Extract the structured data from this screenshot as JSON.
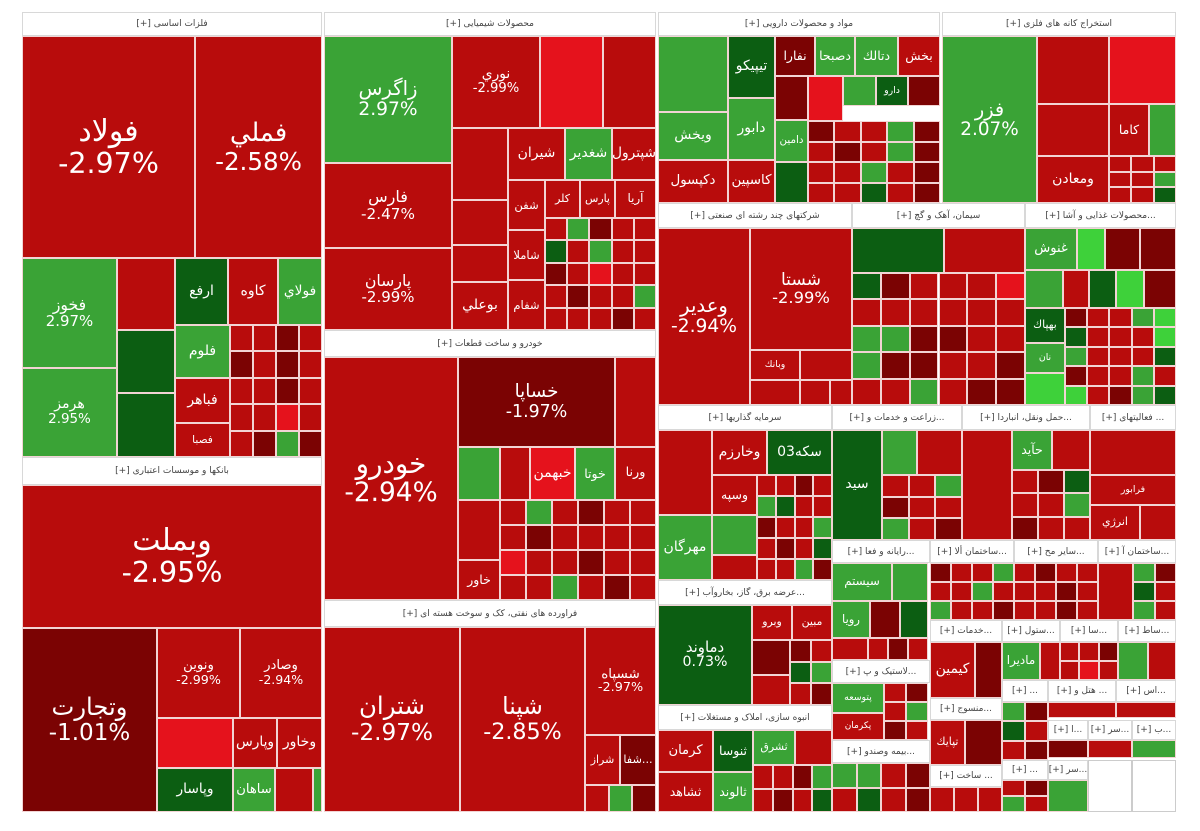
{
  "palette": {
    "R": "#b80c0c",
    "B": "#e5121c",
    "D": "#7b0303",
    "G": "#3aa336",
    "K": "#0c5e12",
    "L": "#3ed13a"
  },
  "sectors": [
    {
      "title": "فلزات اساسی [+]"
    },
    {
      "title": "محصولات شیمیایی [+]"
    },
    {
      "title": "مواد و محصولات دارویی [+]"
    },
    {
      "title": "استخراج کانه های فلزی [+]"
    },
    {
      "title": "بانکها و موسسات اعتباری [+]"
    },
    {
      "title": "خودرو و ساخت قطعات [+]"
    },
    {
      "title": "فراورده های نفتی، کک و سوخت هسته ای [+]"
    },
    {
      "title": "شرکتهای چند رشته ای صنعتی [+]"
    },
    {
      "title": "سیمان، آهک و گچ [+]"
    },
    {
      "title": "...محصولات غذایی و آشا [+]"
    },
    {
      "title": "سرمایه گذاریها [+]"
    },
    {
      "title": "...زراعت و خدمات و [+]"
    },
    {
      "title": "...حمل ونقل، انباردا [+]"
    },
    {
      "title": "... فعالیتهای [+]"
    },
    {
      "title": "...عرضه برق، گاز، بخاروآب [+]"
    },
    {
      "title": "انبوه سازی، املاک و مستغلات [+]"
    },
    {
      "title": "...رایانه و فعا [+]"
    },
    {
      "title": "...ساختمان ألا [+]"
    },
    {
      "title": "...سایر مح [+]"
    },
    {
      "title": "...ساختمان آ [+]"
    },
    {
      "title": "...لاستیک و پ [+]"
    },
    {
      "title": "...بیمه وصندو [+]"
    },
    {
      "title": "...خدمات [+]"
    },
    {
      "title": "...ستول [+]"
    },
    {
      "title": "...سا [+]"
    },
    {
      "title": "...ساط [+]"
    },
    {
      "title": "...منسوج [+]"
    },
    {
      "title": "... [+]"
    },
    {
      "title": "... هتل و [+]"
    },
    {
      "title": "...اس [+]"
    },
    {
      "title": "... ساخت [+]"
    },
    {
      "title": "...ا [+]"
    },
    {
      "title": "...سر [+]"
    },
    {
      "title": "...ب [+]"
    },
    {
      "title": "... [+]"
    },
    {
      "title": "...سر [+]"
    }
  ],
  "tiles": [
    {
      "label": "فولاد",
      "change": "-2.97%",
      "color": "R"
    },
    {
      "label": "فملي",
      "change": "-2.58%",
      "color": "R"
    },
    {
      "label": "فخوز",
      "change": "2.97%",
      "color": "G"
    },
    {
      "label": "هرمز",
      "change": "2.95%",
      "color": "G"
    },
    {
      "label": "ارفع",
      "color": "K"
    },
    {
      "label": "کاوه",
      "color": "R"
    },
    {
      "label": "فولاي",
      "color": "G"
    },
    {
      "label": "فلوم",
      "color": "G"
    },
    {
      "label": "فباهر",
      "color": "R"
    },
    {
      "label": "فصبا",
      "color": "R"
    },
    {
      "label": "وبملت",
      "change": "-2.95%",
      "color": "R"
    },
    {
      "label": "وتجارت",
      "change": "-1.01%",
      "color": "D"
    },
    {
      "label": "ونوين",
      "change": "-2.99%",
      "color": "R"
    },
    {
      "label": "وصادر",
      "change": "-2.94%",
      "color": "R"
    },
    {
      "label": "وپارس",
      "color": "R"
    },
    {
      "label": "وخاور",
      "color": "R"
    },
    {
      "label": "وپاسار",
      "color": "K"
    },
    {
      "label": "ساهان",
      "color": "G"
    },
    {
      "label": "زاگرس",
      "change": "2.97%",
      "color": "G"
    },
    {
      "label": "فارس",
      "change": "-2.47%",
      "color": "R"
    },
    {
      "label": "پارسان",
      "change": "-2.99%",
      "color": "R"
    },
    {
      "label": "نوري",
      "change": "-2.99%",
      "color": "R"
    },
    {
      "label": "شيران",
      "color": "R"
    },
    {
      "label": "شغدير",
      "color": "G"
    },
    {
      "label": "شپترول",
      "color": "R"
    },
    {
      "label": "کلر",
      "color": "R"
    },
    {
      "label": "پارس",
      "color": "R"
    },
    {
      "label": "آريا",
      "color": "R"
    },
    {
      "label": "شفن",
      "color": "R"
    },
    {
      "label": "شاملا",
      "color": "R"
    },
    {
      "label": "شفام",
      "color": "R"
    },
    {
      "label": "بوعلي",
      "color": "R"
    },
    {
      "label": "خودرو",
      "change": "-2.94%",
      "color": "R"
    },
    {
      "label": "خساپا",
      "change": "-1.97%",
      "color": "D"
    },
    {
      "label": "خبهمن",
      "color": "B"
    },
    {
      "label": "خوتا",
      "color": "G"
    },
    {
      "label": "ورنا",
      "color": "R"
    },
    {
      "label": "خاور",
      "color": "R"
    },
    {
      "label": "شتران",
      "change": "-2.97%",
      "color": "R"
    },
    {
      "label": "شپنا",
      "change": "-2.85%",
      "color": "R"
    },
    {
      "label": "شسپاه",
      "change": "-2.97%",
      "color": "R"
    },
    {
      "label": "شراز",
      "color": "R"
    },
    {
      "label": "...شفا",
      "color": "D"
    },
    {
      "label": "تيپيکو",
      "color": "K"
    },
    {
      "label": "نفارا",
      "color": "D"
    },
    {
      "label": "دصبحا",
      "color": "G"
    },
    {
      "label": "دتالك",
      "color": "G"
    },
    {
      "label": "بخش",
      "color": "R"
    },
    {
      "label": "ويخش",
      "color": "G"
    },
    {
      "label": "دکپسول",
      "color": "R"
    },
    {
      "label": "کاسپين",
      "color": "R"
    },
    {
      "label": "دابور",
      "color": "G"
    },
    {
      "label": "دامين",
      "color": "G"
    },
    {
      "label": "دارو",
      "color": "K"
    },
    {
      "label": "فزر",
      "change": "2.07%",
      "color": "G"
    },
    {
      "label": "کاما",
      "color": "R"
    },
    {
      "label": "ومعادن",
      "color": "R"
    },
    {
      "label": "وعدير",
      "change": "-2.94%",
      "color": "R"
    },
    {
      "label": "شستا",
      "change": "-2.99%",
      "color": "R"
    },
    {
      "label": "وبانك",
      "color": "R"
    },
    {
      "label": "غنوش",
      "color": "G"
    },
    {
      "label": "بهپاك",
      "color": "K"
    },
    {
      "label": "نان",
      "color": "G"
    },
    {
      "label": "وخارزم",
      "color": "R"
    },
    {
      "label": "وسپه",
      "color": "R"
    },
    {
      "label": "مهرگان",
      "color": "G"
    },
    {
      "label": "سکه03",
      "color": "K"
    },
    {
      "label": "دماوند",
      "change": "0.73%",
      "color": "K"
    },
    {
      "label": "وبرو",
      "color": "R"
    },
    {
      "label": "مبين",
      "color": "R"
    },
    {
      "label": "کرمان",
      "color": "R"
    },
    {
      "label": "ثنوسا",
      "color": "K"
    },
    {
      "label": "ثشرق",
      "color": "G"
    },
    {
      "label": "ثشاهد",
      "color": "R"
    },
    {
      "label": "ثالوند",
      "color": "G"
    },
    {
      "label": "سيستم",
      "color": "G"
    },
    {
      "label": "رويا",
      "color": "G"
    },
    {
      "label": "پتوسعه",
      "color": "G"
    },
    {
      "label": "پکرمان",
      "color": "R"
    },
    {
      "label": "کيمين",
      "color": "R"
    },
    {
      "label": "مادیرا",
      "color": "G"
    },
    {
      "label": "تپايك",
      "color": "R"
    },
    {
      "label": "سيد",
      "color": "K"
    },
    {
      "label": "فرابور",
      "color": "R"
    },
    {
      "label": "انرژي",
      "color": "R"
    },
    {
      "label": "حآيد",
      "color": "G"
    }
  ]
}
